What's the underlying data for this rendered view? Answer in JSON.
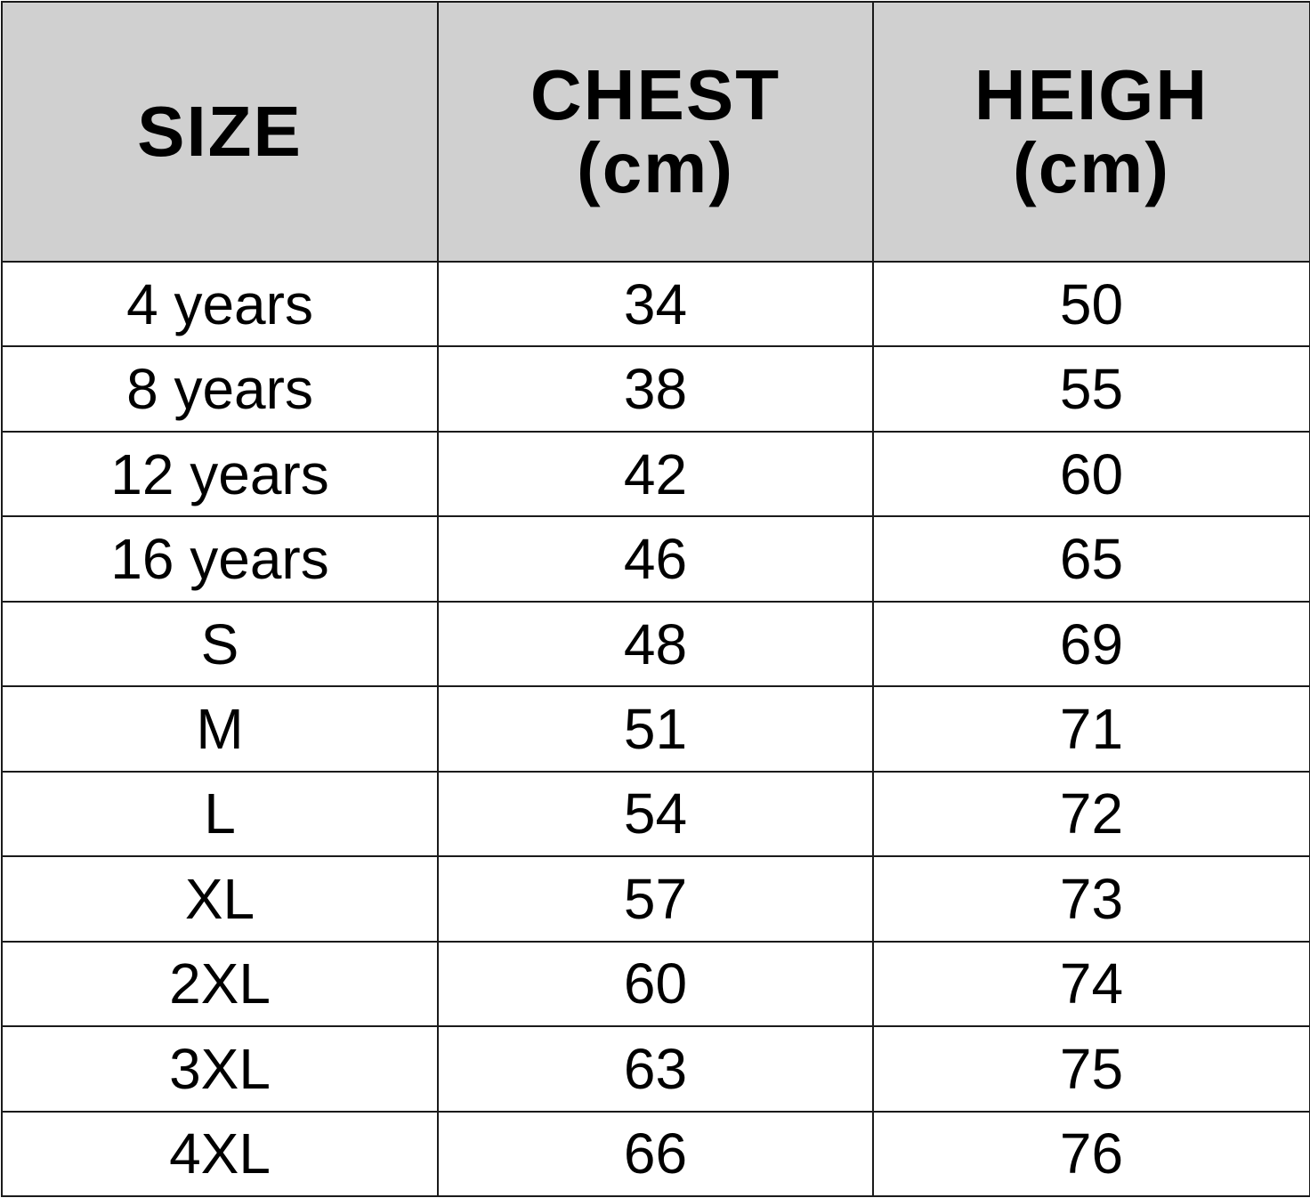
{
  "headers": {
    "size": "SIZE",
    "chest": "CHEST",
    "chest_unit": "(cm)",
    "height": "HEIGH",
    "height_unit": "(cm)"
  },
  "rows": [
    {
      "size": "4 years",
      "chest": "34",
      "height": "50"
    },
    {
      "size": "8 years",
      "chest": "38",
      "height": "55"
    },
    {
      "size": "12 years",
      "chest": "42",
      "height": "60"
    },
    {
      "size": "16 years",
      "chest": "46",
      "height": "65"
    },
    {
      "size": "S",
      "chest": "48",
      "height": "69"
    },
    {
      "size": "M",
      "chest": "51",
      "height": "71"
    },
    {
      "size": "L",
      "chest": "54",
      "height": "72"
    },
    {
      "size": "XL",
      "chest": "57",
      "height": "73"
    },
    {
      "size": "2XL",
      "chest": "60",
      "height": "74"
    },
    {
      "size": "3XL",
      "chest": "63",
      "height": "75"
    },
    {
      "size": "4XL",
      "chest": "66",
      "height": "76"
    }
  ],
  "colors": {
    "header_bg": "#d0d0d0",
    "border": "#1a1a1a"
  }
}
